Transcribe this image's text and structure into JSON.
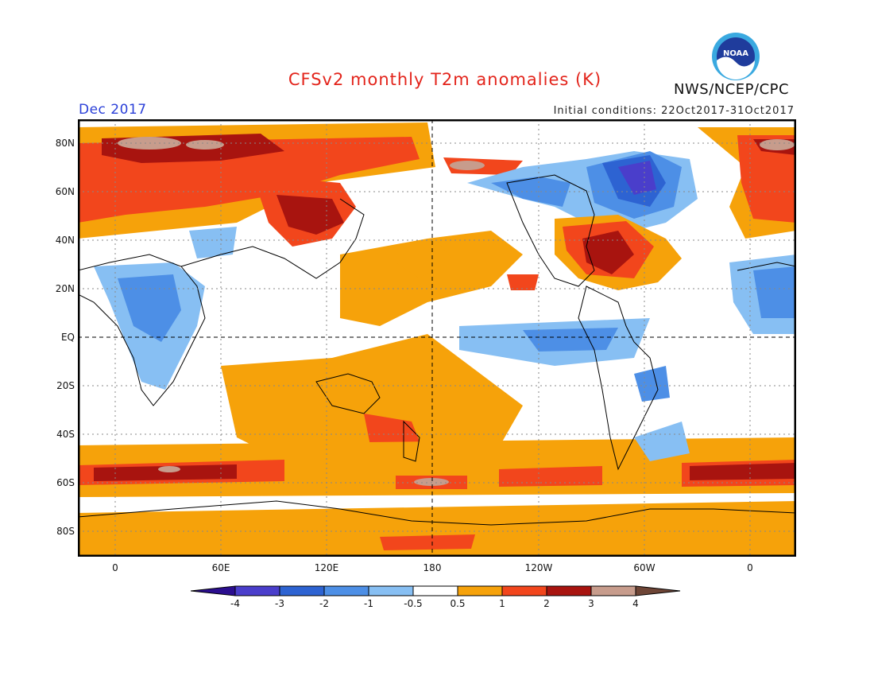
{
  "title": "CFSv2 monthly T2m anomalies (K)",
  "organization": "NWS/NCEP/CPC",
  "logo_text": "NOAA",
  "period": "Dec 2017",
  "initial_conditions": "Initial conditions: 22Oct2017-31Oct2017",
  "lat_labels": [
    "80N",
    "60N",
    "40N",
    "20N",
    "EQ",
    "20S",
    "40S",
    "60S",
    "80S"
  ],
  "lon_labels": [
    "0",
    "60E",
    "120E",
    "180",
    "120W",
    "60W",
    "0"
  ],
  "colorbar": {
    "labels": [
      "-4",
      "-3",
      "-2",
      "-1",
      "-0.5",
      "0.5",
      "1",
      "2",
      "3",
      "4"
    ],
    "colors": [
      "#2b0e8f",
      "#4a3ecb",
      "#2d63d2",
      "#4d8fe6",
      "#87bff3",
      "#ffffff",
      "#f6a20a",
      "#f2461c",
      "#a8140f",
      "#c79c8c",
      "#6e4536"
    ]
  },
  "colors": {
    "title": "#e3241b",
    "period": "#2a3fd8",
    "warm1": "#f6a20a",
    "warm2": "#f2461c",
    "warm3": "#a8140f",
    "warm4": "#c79c8c",
    "cool1": "#87bff3",
    "cool2": "#4d8fe6",
    "cool3": "#2d63d2",
    "cool4": "#4a3ecb"
  }
}
